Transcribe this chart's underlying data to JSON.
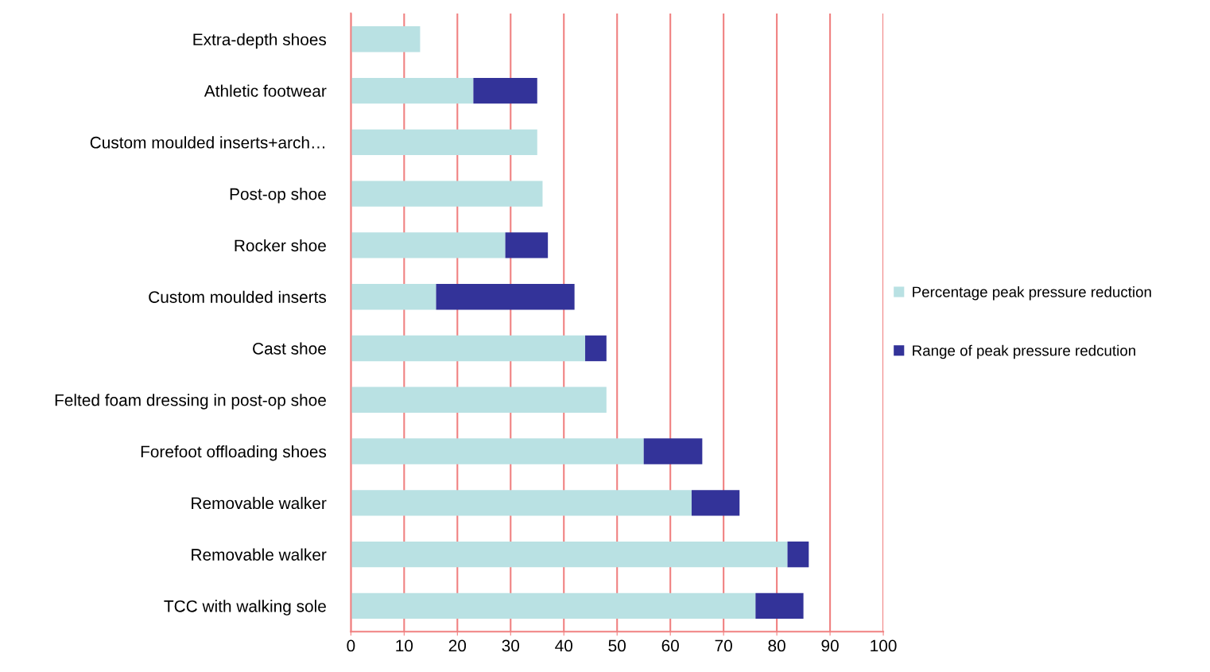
{
  "chart_data": {
    "type": "bar",
    "orientation": "horizontal",
    "stacked": true,
    "categories": [
      "Extra-depth shoes",
      "Athletic footwear",
      "Custom moulded inserts+arch…",
      "Post-op shoe",
      "Rocker shoe",
      "Custom moulded inserts",
      "Cast shoe",
      "Felted foam dressing in post-op shoe",
      "Forefoot offloading shoes",
      "Removable walker",
      "Removable walker",
      "TCC with walking sole"
    ],
    "series": [
      {
        "name": "Percentage peak pressure reduction",
        "color": "#b9e1e3",
        "values": [
          13,
          23,
          35,
          36,
          29,
          16,
          44,
          48,
          55,
          64,
          82,
          76
        ]
      },
      {
        "name": "Range of peak pressure redcution",
        "color": "#333399",
        "values": [
          null,
          12,
          null,
          null,
          8,
          26,
          4,
          null,
          11,
          9,
          4,
          9
        ]
      }
    ],
    "xlim": [
      0,
      100
    ],
    "xticks": [
      0,
      10,
      20,
      30,
      40,
      50,
      60,
      70,
      80,
      90,
      100
    ],
    "grid": "x",
    "legend": "right"
  }
}
